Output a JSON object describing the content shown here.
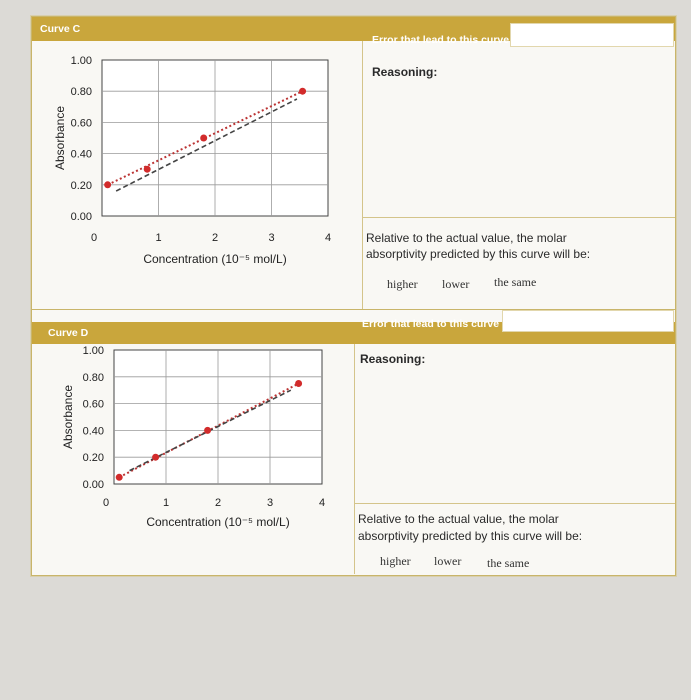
{
  "curve_c": {
    "title": "Curve C",
    "error_label": "Error that lead to this curve",
    "reasoning_label": "Reasoning:",
    "question_line1": "Relative to the actual value, the molar",
    "question_line2": "absorptivity predicted by this curve will be:",
    "options": [
      "higher",
      "lower",
      "the same"
    ]
  },
  "curve_d": {
    "title": "Curve D",
    "error_label": "Error that lead to this curve",
    "reasoning_label": "Reasoning:",
    "question_line1": "Relative to the actual value, the molar",
    "question_line2": "absorptivity predicted by this curve will be:",
    "options": [
      "higher",
      "lower",
      "the same"
    ]
  },
  "chart_data": [
    {
      "type": "scatter",
      "ylabel": "Absorbance",
      "xlabel": "Concentration (10⁻⁵ mol/L)",
      "xlim": [
        0,
        4
      ],
      "ylim": [
        0,
        1
      ],
      "x_ticks": [
        "0",
        "1",
        "2",
        "3",
        "4"
      ],
      "y_ticks": [
        "0.00",
        "0.20",
        "0.40",
        "0.60",
        "0.80",
        "1.00"
      ],
      "grid": true,
      "points": [
        [
          0.1,
          0.2
        ],
        [
          0.8,
          0.3
        ],
        [
          1.8,
          0.5
        ],
        [
          3.55,
          0.8
        ]
      ],
      "lines": [
        {
          "style": "dotted",
          "points": [
            [
              0.1,
              0.2
            ],
            [
              3.55,
              0.8
            ]
          ]
        },
        {
          "style": "dashed",
          "points": [
            [
              0.25,
              0.16
            ],
            [
              3.45,
              0.75
            ]
          ]
        }
      ],
      "point_color": "#d22b2b"
    },
    {
      "type": "scatter",
      "ylabel": "Absorbance",
      "xlabel": "Concentration (10⁻⁵ mol/L)",
      "xlim": [
        0,
        4
      ],
      "ylim": [
        0,
        1
      ],
      "x_ticks": [
        "0",
        "1",
        "2",
        "3",
        "4"
      ],
      "y_ticks": [
        "0.00",
        "0.20",
        "0.40",
        "0.60",
        "0.80",
        "1.00"
      ],
      "grid": true,
      "points": [
        [
          0.1,
          0.05
        ],
        [
          0.8,
          0.2
        ],
        [
          1.8,
          0.4
        ],
        [
          3.55,
          0.75
        ]
      ],
      "lines": [
        {
          "style": "dotted",
          "points": [
            [
              0.1,
              0.05
            ],
            [
              3.55,
              0.75
            ]
          ]
        },
        {
          "style": "dashed",
          "points": [
            [
              0.3,
              0.1
            ],
            [
              3.4,
              0.7
            ]
          ]
        }
      ],
      "point_color": "#d22b2b"
    }
  ]
}
